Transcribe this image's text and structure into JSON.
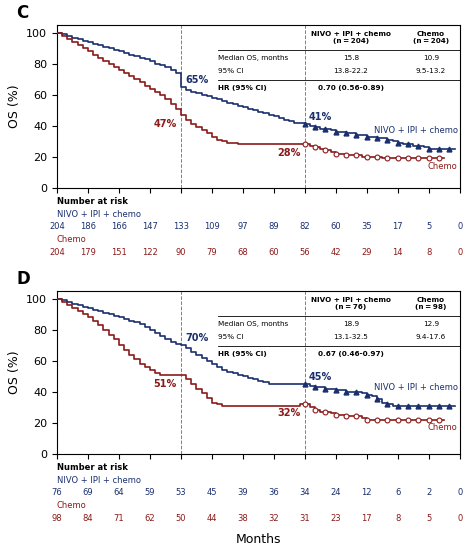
{
  "chart_data": [
    {
      "type": "step",
      "title": "C",
      "y_label": "OS (%)",
      "xlim": [
        0,
        39
      ],
      "ylim": [
        0,
        105
      ],
      "xticks": [
        0,
        3,
        6,
        9,
        12,
        15,
        18,
        21,
        24,
        27,
        30,
        33,
        36,
        39
      ],
      "yticks": [
        0,
        20,
        40,
        60,
        80,
        100
      ],
      "tick_labels": "y",
      "grid": false,
      "vlines": [
        12,
        24
      ],
      "series": [
        {
          "name": "NIVO + IPI + chemo",
          "color": "#1a2f6e",
          "x": [
            0,
            0.5,
            1,
            1.5,
            2,
            2.5,
            3,
            3.5,
            4,
            4.5,
            5,
            5.5,
            6,
            6.5,
            7,
            7.5,
            8,
            8.5,
            9,
            9.5,
            10,
            10.5,
            11,
            11.5,
            12,
            12.5,
            13,
            13.5,
            14,
            14.5,
            15,
            15.5,
            16,
            16.5,
            17,
            17.5,
            18,
            18.5,
            19,
            19.5,
            20,
            20.5,
            21,
            21.5,
            22,
            22.5,
            23,
            23.5,
            24,
            24.5,
            25,
            25.5,
            26,
            26.5,
            27,
            27.5,
            28,
            28.5,
            29,
            29.5,
            30,
            30.5,
            31,
            31.5,
            32,
            32.5,
            33,
            33.5,
            34,
            34.5,
            35,
            35.5,
            36,
            36.5,
            37,
            37.5,
            38,
            38.5
          ],
          "values": [
            100,
            99,
            98,
            97,
            96,
            95,
            94,
            93,
            92,
            91,
            90,
            89,
            88,
            87,
            86,
            85,
            84,
            83,
            82,
            80,
            79,
            78,
            76,
            74,
            65,
            63,
            62,
            61,
            60,
            59,
            58,
            57,
            56,
            55,
            54,
            53,
            52,
            51,
            50,
            49,
            48,
            47,
            46,
            45,
            44,
            43,
            42,
            42,
            41,
            40,
            39,
            38,
            38,
            37,
            36,
            36,
            35,
            35,
            34,
            34,
            33,
            33,
            32,
            32,
            31,
            30,
            29,
            28,
            28,
            27,
            27,
            26,
            25,
            25,
            25,
            25,
            25,
            25
          ],
          "censored": {
            "marker": "triangle",
            "x": [
              24,
              25,
              26,
              27,
              28,
              29,
              30,
              31,
              32,
              33,
              34,
              35,
              36,
              37,
              38
            ],
            "values": [
              41,
              39,
              38,
              36,
              35,
              34,
              33,
              32,
              31,
              29,
              28,
              27,
              25,
              25,
              25
            ]
          }
        },
        {
          "name": "Chemo",
          "color": "#8b1a1a",
          "x": [
            0,
            0.5,
            1,
            1.5,
            2,
            2.5,
            3,
            3.5,
            4,
            4.5,
            5,
            5.5,
            6,
            6.5,
            7,
            7.5,
            8,
            8.5,
            9,
            9.5,
            10,
            10.5,
            11,
            11.5,
            12,
            12.5,
            13,
            13.5,
            14,
            14.5,
            15,
            15.5,
            16,
            16.5,
            17,
            17.5,
            18,
            18.5,
            19,
            19.5,
            20,
            20.5,
            21,
            21.5,
            22,
            22.5,
            23,
            23.5,
            24,
            24.5,
            25,
            25.5,
            26,
            26.5,
            27,
            27.5,
            28,
            28.5,
            29,
            29.5,
            30,
            30.5,
            31,
            31.5,
            32,
            32.5,
            33,
            33.5,
            34,
            34.5,
            35,
            35.5,
            36,
            36.5,
            37,
            37.5
          ],
          "values": [
            100,
            98,
            96,
            94,
            92,
            90,
            88,
            86,
            84,
            82,
            80,
            78,
            76,
            74,
            72,
            70,
            68,
            66,
            64,
            62,
            60,
            57,
            54,
            51,
            47,
            44,
            41,
            39,
            37,
            35,
            33,
            31,
            30,
            29,
            29,
            28,
            28,
            28,
            28,
            28,
            28,
            28,
            28,
            28,
            28,
            28,
            28,
            28,
            28,
            27,
            26,
            25,
            24,
            23,
            22,
            22,
            21,
            21,
            21,
            20,
            20,
            20,
            20,
            19,
            19,
            19,
            19,
            19,
            19,
            19,
            19,
            19,
            19,
            19,
            19,
            19
          ],
          "censored": {
            "marker": "open circle",
            "x": [
              24,
              25,
              26,
              27,
              28,
              29,
              30,
              31,
              32,
              33,
              34,
              35,
              36,
              37
            ],
            "values": [
              28,
              26,
              24,
              22,
              21,
              21,
              20,
              20,
              19,
              19,
              19,
              19,
              19,
              19
            ]
          }
        }
      ],
      "annotations": [
        {
          "text": "65%",
          "x": 12,
          "y": 65,
          "series": "NIVO + IPI + chemo"
        },
        {
          "text": "47%",
          "x": 12,
          "y": 47,
          "series": "Chemo"
        },
        {
          "text": "41%",
          "x": 24,
          "y": 41,
          "series": "NIVO + IPI + chemo"
        },
        {
          "text": "28%",
          "x": 24,
          "y": 28,
          "series": "Chemo"
        }
      ],
      "table": {
        "columns": [
          "NIVO + IPI + chemo\n(n = 204)",
          "Chemo\n(n = 204)"
        ],
        "rows": [
          {
            "label": "Median OS, months",
            "values": [
              "15.8",
              "10.9"
            ]
          },
          {
            "label": "95% CI",
            "values": [
              "13.8-22.2",
              "9.5-13.2"
            ]
          },
          {
            "label": "HR (95% CI)",
            "values": [
              "0.70 (0.56-0.89)"
            ]
          }
        ]
      },
      "risk_table": {
        "title": "Number at risk",
        "x": [
          0,
          3,
          6,
          9,
          12,
          15,
          18,
          21,
          24,
          27,
          30,
          33,
          36,
          39
        ],
        "rows": [
          {
            "name": "NIVO + IPI + chemo",
            "color": "#1a2f6e",
            "values": [
              204,
              186,
              166,
              147,
              133,
              109,
              97,
              89,
              82,
              60,
              35,
              17,
              5,
              0
            ]
          },
          {
            "name": "Chemo",
            "color": "#8b1a1a",
            "values": [
              204,
              179,
              151,
              122,
              90,
              79,
              68,
              60,
              56,
              42,
              29,
              14,
              8,
              0
            ]
          }
        ]
      }
    },
    {
      "type": "step",
      "title": "D",
      "y_label": "OS (%)",
      "x_label": "Months",
      "xlim": [
        0,
        39
      ],
      "ylim": [
        0,
        105
      ],
      "xticks": [
        0,
        3,
        6,
        9,
        12,
        15,
        18,
        21,
        24,
        27,
        30,
        33,
        36,
        39
      ],
      "yticks": [
        0,
        20,
        40,
        60,
        80,
        100
      ],
      "tick_labels": "y",
      "grid": false,
      "vlines": [
        12,
        24
      ],
      "series": [
        {
          "name": "NIVO + IPI + chemo",
          "color": "#1a2f6e",
          "x": [
            0,
            0.5,
            1,
            1.5,
            2,
            2.5,
            3,
            3.5,
            4,
            4.5,
            5,
            5.5,
            6,
            6.5,
            7,
            7.5,
            8,
            8.5,
            9,
            9.5,
            10,
            10.5,
            11,
            11.5,
            12,
            12.5,
            13,
            13.5,
            14,
            14.5,
            15,
            15.5,
            16,
            16.5,
            17,
            17.5,
            18,
            18.5,
            19,
            19.5,
            20,
            20.5,
            21,
            21.5,
            22,
            22.5,
            23,
            23.5,
            24,
            24.5,
            25,
            25.5,
            26,
            26.5,
            27,
            27.5,
            28,
            28.5,
            29,
            29.5,
            30,
            30.5,
            31,
            31.5,
            32,
            32.5,
            33,
            33.5,
            34,
            34.5,
            35,
            35.5,
            36,
            36.5,
            37,
            37.5,
            38,
            38.5
          ],
          "values": [
            100,
            99,
            98,
            97,
            96,
            95,
            94,
            93,
            92,
            91,
            90,
            89,
            88,
            87,
            86,
            85,
            84,
            82,
            80,
            78,
            76,
            74,
            72,
            71,
            70,
            68,
            66,
            64,
            62,
            60,
            58,
            56,
            54,
            53,
            52,
            51,
            50,
            49,
            48,
            47,
            46,
            45,
            45,
            45,
            45,
            45,
            45,
            45,
            45,
            44,
            43,
            43,
            42,
            42,
            41,
            41,
            40,
            40,
            40,
            39,
            38,
            37,
            35,
            33,
            32,
            31,
            31,
            31,
            31,
            31,
            31,
            31,
            31,
            31,
            31,
            31,
            31,
            31
          ],
          "censored": {
            "marker": "triangle",
            "x": [
              24,
              25,
              26,
              27,
              28,
              29,
              30,
              31,
              32,
              33,
              34,
              35,
              36,
              37,
              38
            ],
            "values": [
              45,
              43,
              42,
              41,
              40,
              40,
              38,
              35,
              32,
              31,
              31,
              31,
              31,
              31,
              31
            ]
          }
        },
        {
          "name": "Chemo",
          "color": "#8b1a1a",
          "x": [
            0,
            0.5,
            1,
            1.5,
            2,
            2.5,
            3,
            3.5,
            4,
            4.5,
            5,
            5.5,
            6,
            6.5,
            7,
            7.5,
            8,
            8.5,
            9,
            9.5,
            10,
            10.5,
            11,
            11.5,
            12,
            12.5,
            13,
            13.5,
            14,
            14.5,
            15,
            15.5,
            16,
            16.5,
            17,
            17.5,
            18,
            18.5,
            19,
            19.5,
            20,
            20.5,
            21,
            21.5,
            22,
            22.5,
            23,
            23.5,
            24,
            24.5,
            25,
            25.5,
            26,
            26.5,
            27,
            27.5,
            28,
            28.5,
            29,
            29.5,
            30,
            30.5,
            31,
            31.5,
            32,
            32.5,
            33,
            33.5,
            34,
            34.5,
            35,
            35.5,
            36,
            36.5,
            37,
            37.5
          ],
          "values": [
            100,
            98,
            96,
            94,
            92,
            90,
            88,
            86,
            83,
            80,
            77,
            74,
            70,
            67,
            64,
            61,
            58,
            56,
            54,
            52,
            51,
            51,
            51,
            51,
            51,
            48,
            45,
            42,
            39,
            36,
            33,
            32,
            31,
            31,
            31,
            31,
            31,
            31,
            31,
            31,
            31,
            31,
            31,
            31,
            31,
            31,
            31,
            32,
            32,
            30,
            28,
            27,
            27,
            26,
            25,
            25,
            24,
            24,
            24,
            23,
            22,
            22,
            22,
            22,
            22,
            22,
            22,
            22,
            22,
            22,
            22,
            22,
            22,
            22,
            22,
            22
          ],
          "censored": {
            "marker": "open circle",
            "x": [
              24,
              25,
              26,
              27,
              28,
              29,
              30,
              31,
              32,
              33,
              34,
              35,
              36,
              37
            ],
            "values": [
              32,
              28,
              27,
              25,
              24,
              24,
              22,
              22,
              22,
              22,
              22,
              22,
              22,
              22
            ]
          }
        }
      ],
      "annotations": [
        {
          "text": "70%",
          "x": 12,
          "y": 70,
          "series": "NIVO + IPI + chemo"
        },
        {
          "text": "51%",
          "x": 12,
          "y": 51,
          "series": "Chemo"
        },
        {
          "text": "45%",
          "x": 24,
          "y": 45,
          "series": "NIVO + IPI + chemo"
        },
        {
          "text": "32%",
          "x": 24,
          "y": 32,
          "series": "Chemo"
        }
      ],
      "table": {
        "columns": [
          "NIVO + IPI + chemo\n(n = 76)",
          "Chemo\n(n = 98)"
        ],
        "rows": [
          {
            "label": "Median OS, months",
            "values": [
              "18.9",
              "12.9"
            ]
          },
          {
            "label": "95% CI",
            "values": [
              "13.1-32.5",
              "9.4-17.6"
            ]
          },
          {
            "label": "HR (95% CI)",
            "values": [
              "0.67 (0.46-0.97)"
            ]
          }
        ]
      },
      "risk_table": {
        "title": "Number at risk",
        "x": [
          0,
          3,
          6,
          9,
          12,
          15,
          18,
          21,
          24,
          27,
          30,
          33,
          36,
          39
        ],
        "rows": [
          {
            "name": "NIVO + IPI + chemo",
            "color": "#1a2f6e",
            "values": [
              76,
              69,
              64,
              59,
              53,
              45,
              39,
              36,
              34,
              24,
              12,
              6,
              2,
              0
            ]
          },
          {
            "name": "Chemo",
            "color": "#8b1a1a",
            "values": [
              98,
              84,
              71,
              62,
              50,
              44,
              38,
              32,
              31,
              23,
              17,
              8,
              5,
              0
            ]
          }
        ]
      }
    }
  ]
}
